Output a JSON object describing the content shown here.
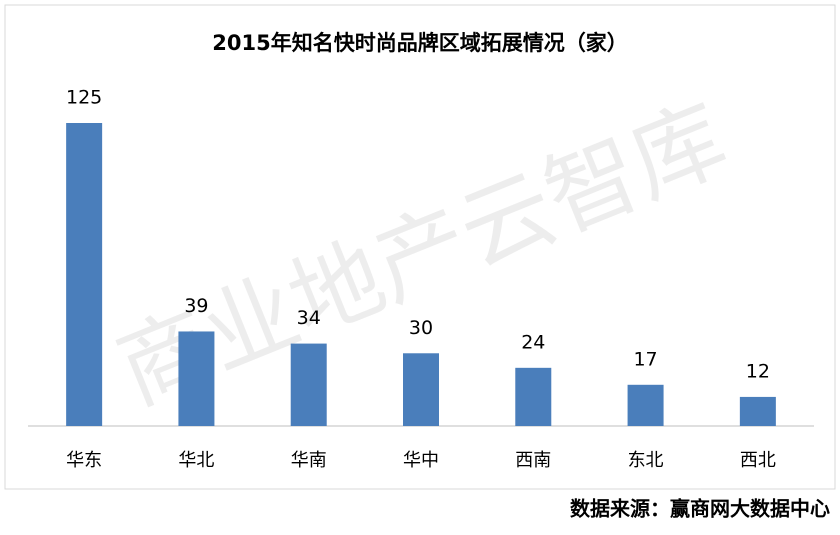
{
  "chart_data": {
    "type": "bar",
    "title": "2015年知名快时尚品牌区域拓展情况（家）",
    "categories": [
      "华东",
      "华北",
      "华南",
      "华中",
      "西南",
      "东北",
      "西北"
    ],
    "values": [
      125,
      39,
      34,
      30,
      24,
      17,
      12
    ],
    "color": "#4a7ebb",
    "watermark": "商业地产云智库",
    "source": "数据来源：赢商网大数据中心"
  }
}
